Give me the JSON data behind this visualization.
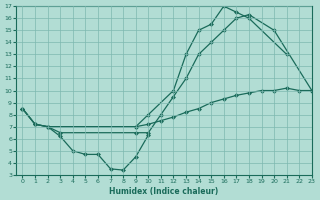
{
  "xlabel": "Humidex (Indice chaleur)",
  "ylabel": "",
  "background_color": "#b2ddd4",
  "grid_color": "#7db8b0",
  "line_color": "#1a6b5a",
  "xlim": [
    -0.5,
    23
  ],
  "ylim": [
    3,
    17
  ],
  "xticks": [
    0,
    1,
    2,
    3,
    4,
    5,
    6,
    7,
    8,
    9,
    10,
    11,
    12,
    13,
    14,
    15,
    16,
    17,
    18,
    19,
    20,
    21,
    22,
    23
  ],
  "yticks": [
    3,
    4,
    5,
    6,
    7,
    8,
    9,
    10,
    11,
    12,
    13,
    14,
    15,
    16,
    17
  ],
  "line1_x": [
    0,
    1,
    2,
    9,
    10,
    12,
    13,
    14,
    15,
    16,
    17,
    18,
    21
  ],
  "line1_y": [
    8.5,
    7.2,
    7.0,
    7.0,
    8.0,
    10.0,
    13.0,
    15.0,
    15.5,
    17.0,
    16.5,
    16.0,
    13.0
  ],
  "line2_x": [
    0,
    1,
    2,
    3,
    9,
    10,
    11,
    12,
    13,
    14,
    15,
    16,
    17,
    18,
    20,
    23
  ],
  "line2_y": [
    8.5,
    7.2,
    7.0,
    6.5,
    6.5,
    6.5,
    8.0,
    9.5,
    11.0,
    13.0,
    14.0,
    15.0,
    16.0,
    16.3,
    15.0,
    10.0
  ],
  "line3_x": [
    0,
    1,
    2,
    9,
    10,
    11,
    12,
    13,
    14,
    15,
    16,
    17,
    18,
    19,
    20,
    21,
    22,
    23
  ],
  "line3_y": [
    8.5,
    7.2,
    7.0,
    7.0,
    7.2,
    7.5,
    7.8,
    8.2,
    8.5,
    9.0,
    9.3,
    9.6,
    9.8,
    10.0,
    10.0,
    10.2,
    10.0,
    10.0
  ],
  "line_low_x": [
    2,
    3,
    4,
    5,
    6,
    7,
    8,
    9,
    10
  ],
  "line_low_y": [
    7.0,
    6.2,
    5.0,
    4.7,
    4.7,
    3.5,
    3.4,
    4.5,
    6.3
  ]
}
